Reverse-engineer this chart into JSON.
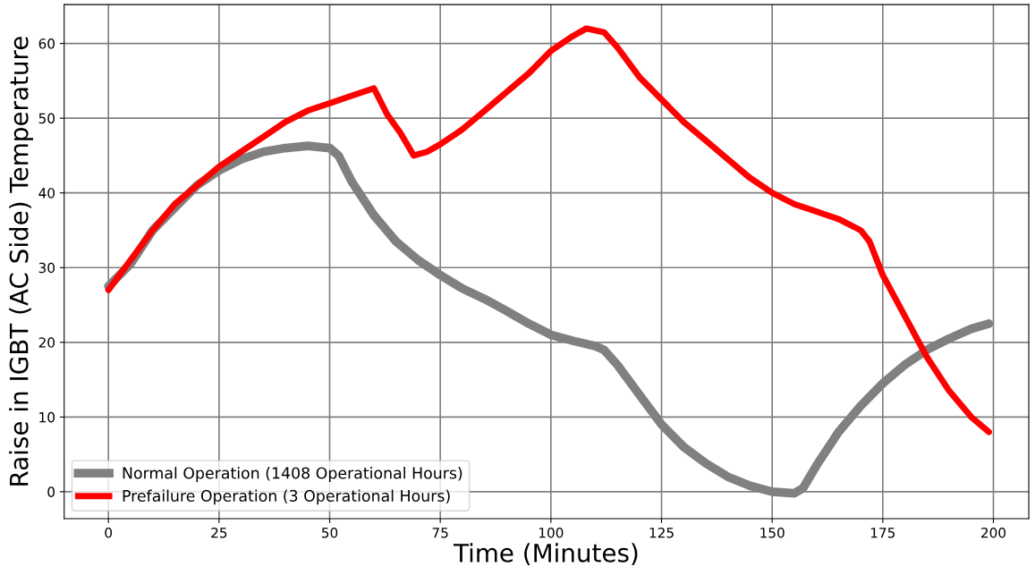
{
  "chart_data": {
    "type": "line",
    "xlabel": "Time (Minutes)",
    "ylabel": "Raise in IGBT (AC Side) Temperature",
    "xlim": [
      -10,
      208
    ],
    "ylim": [
      -3.6,
      65.2
    ],
    "xticks": [
      0,
      25,
      50,
      75,
      100,
      125,
      150,
      175,
      200
    ],
    "yticks": [
      0,
      10,
      20,
      30,
      40,
      50,
      60
    ],
    "grid": true,
    "legend": "bottom left",
    "series": [
      {
        "name": "Normal Operation (1408 Operational Hours)",
        "color": "#808080",
        "x": [
          0,
          5,
          10,
          15,
          20,
          25,
          30,
          35,
          40,
          45,
          50,
          52,
          55,
          60,
          65,
          70,
          75,
          80,
          85,
          90,
          95,
          100,
          105,
          110,
          112,
          115,
          120,
          125,
          130,
          135,
          140,
          145,
          150,
          155,
          157,
          160,
          165,
          170,
          175,
          180,
          185,
          190,
          195,
          199
        ],
        "values": [
          27.5,
          30.5,
          35,
          38,
          41,
          43,
          44.5,
          45.5,
          46,
          46.3,
          46,
          45,
          41.5,
          37,
          33.5,
          31,
          29,
          27.2,
          25.8,
          24.2,
          22.5,
          21,
          20.2,
          19.5,
          19,
          17,
          13,
          9,
          6,
          3.8,
          2,
          0.8,
          0,
          -0.2,
          0.5,
          3.5,
          8,
          11.5,
          14.5,
          17,
          19,
          20.5,
          21.8,
          22.5
        ]
      },
      {
        "name": "Prefailure Operation (3 Operational Hours)",
        "color": "#ff0000",
        "x": [
          0,
          5,
          10,
          15,
          20,
          25,
          30,
          35,
          40,
          45,
          50,
          55,
          60,
          63,
          66,
          69,
          72,
          75,
          80,
          85,
          90,
          95,
          100,
          105,
          108,
          112,
          115,
          120,
          125,
          130,
          135,
          140,
          145,
          150,
          155,
          160,
          165,
          170,
          172,
          175,
          180,
          185,
          190,
          195,
          199
        ],
        "values": [
          27,
          31,
          35,
          38.5,
          41,
          43.5,
          45.5,
          47.5,
          49.5,
          51,
          52,
          53,
          54,
          50.5,
          48,
          45,
          45.5,
          46.5,
          48.5,
          51,
          53.5,
          56,
          59,
          61,
          62,
          61.5,
          59.5,
          55.5,
          52.5,
          49.5,
          47,
          44.5,
          42,
          40,
          38.5,
          37.5,
          36.5,
          35,
          33.5,
          29,
          23.5,
          18,
          13.5,
          10,
          8
        ]
      }
    ]
  }
}
